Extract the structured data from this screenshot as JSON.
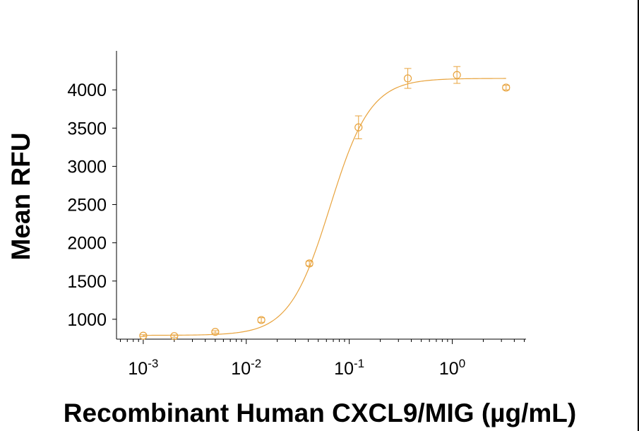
{
  "chart_data": {
    "type": "scatter",
    "title": "",
    "xlabel": "Recombinant Human CXCL9/MIG (µg/mL)",
    "ylabel": "Mean RFU",
    "xscale": "log",
    "xlim": [
      0.00055,
      5.2
    ],
    "ylim": [
      740,
      4510
    ],
    "y_ticks": [
      1000,
      1500,
      2000,
      2500,
      3000,
      3500,
      4000
    ],
    "x_ticks": [
      {
        "value": 0.001,
        "base": "10",
        "exp": "-3"
      },
      {
        "value": 0.01,
        "base": "10",
        "exp": "-2"
      },
      {
        "value": 0.1,
        "base": "10",
        "exp": "-1"
      },
      {
        "value": 1,
        "base": "10",
        "exp": "0"
      }
    ],
    "grid": false,
    "legend": "none",
    "color": "#E8A33D",
    "series": [
      {
        "x": [
          0.001,
          0.002,
          0.005,
          0.014,
          0.041,
          0.123,
          0.37,
          1.11,
          3.33
        ],
        "y": [
          785,
          780,
          835,
          990,
          1730,
          3510,
          4150,
          4195,
          4030
        ],
        "err": [
          12,
          15,
          15,
          30,
          30,
          150,
          130,
          110,
          30
        ]
      }
    ],
    "fit": {
      "model": "4PL",
      "bottom": 790,
      "top": 4150,
      "ec50": 0.065,
      "hill": 2.2
    }
  }
}
